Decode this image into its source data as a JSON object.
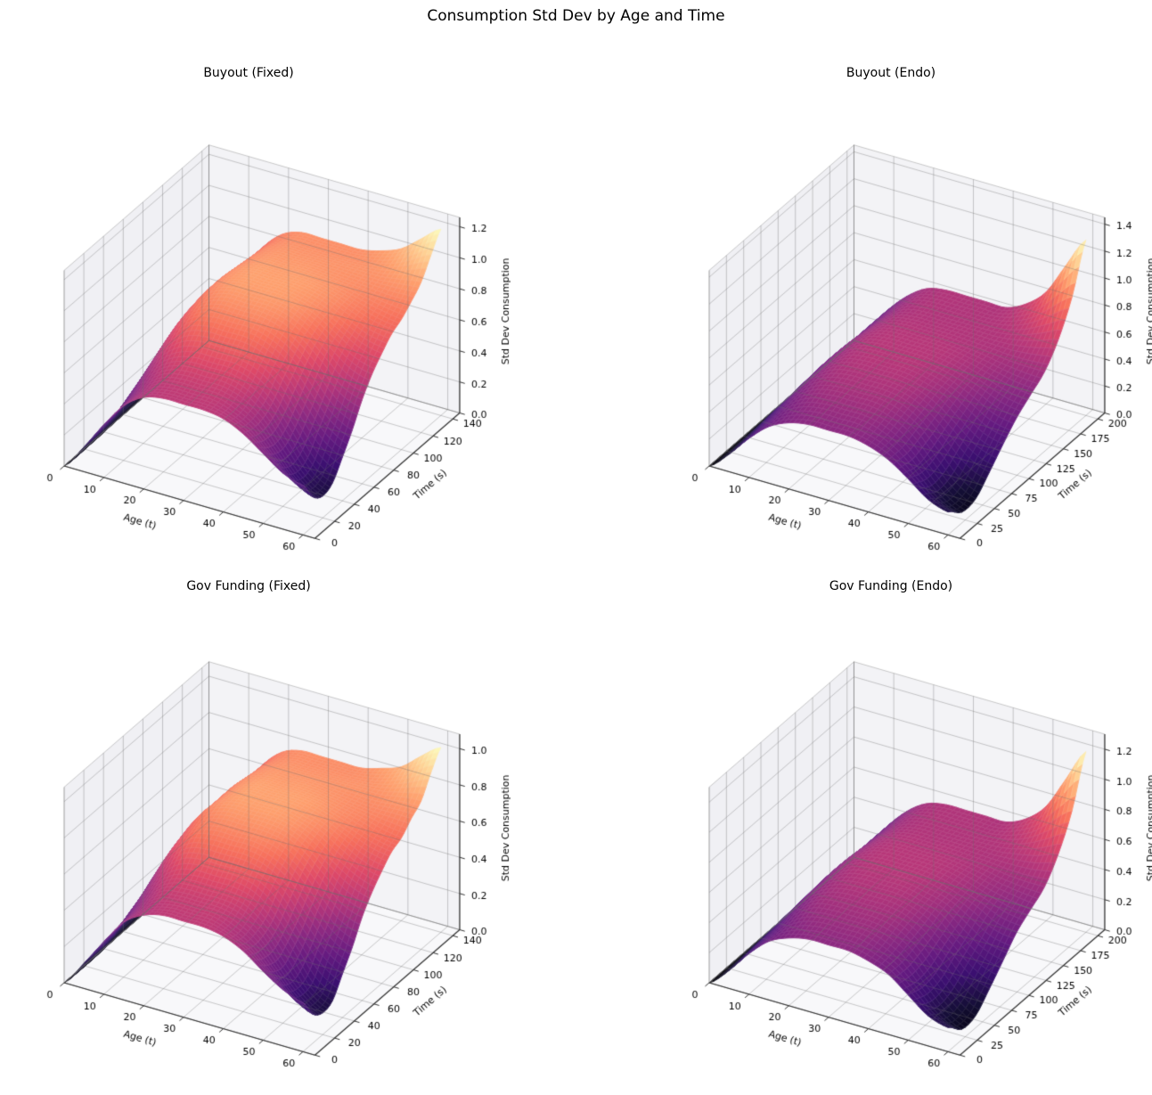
{
  "figure": {
    "suptitle": "Consumption Std Dev by Age and Time"
  },
  "colors": {
    "background": "#ffffff",
    "pane_wall": "#f0f0f4",
    "pane_wall2": "#f3f3f6",
    "pane_floor": "#f8f8fa",
    "grid_line": "rgba(110,110,110,0.45)",
    "axis_line": "#333333",
    "text": "#000000",
    "mesh_line": "rgba(255,255,255,0.25)",
    "colormap": "magma",
    "magma_stops": [
      [
        0,
        0,
        4
      ],
      [
        20,
        14,
        54
      ],
      [
        59,
        15,
        112
      ],
      [
        100,
        26,
        128
      ],
      [
        140,
        41,
        129
      ],
      [
        183,
        55,
        121
      ],
      [
        222,
        73,
        104
      ],
      [
        247,
        112,
        92
      ],
      [
        254,
        159,
        109
      ],
      [
        254,
        207,
        146
      ],
      [
        252,
        253,
        191
      ]
    ]
  },
  "chart_data": [
    {
      "type": "surface",
      "title": "Buyout (Fixed)",
      "xlabel": "Age (t)",
      "ylabel": "Time (s)",
      "zlabel": "Std Dev Consumption",
      "x_ticks": [
        0,
        10,
        20,
        30,
        40,
        50,
        60
      ],
      "y_ticks": [
        0,
        20,
        40,
        60,
        80,
        100,
        120,
        140
      ],
      "z_ticks": [
        0.0,
        0.2,
        0.4,
        0.6,
        0.8,
        1.0,
        1.2
      ],
      "xlim": [
        0,
        63
      ],
      "ylim": [
        0,
        147
      ],
      "zlim": [
        0,
        1.26
      ],
      "grid_on": true,
      "ages": [
        0,
        5,
        10,
        15,
        20,
        25,
        30,
        35,
        40,
        45,
        50,
        55,
        60
      ],
      "times": [
        0,
        10,
        20,
        30,
        40,
        50,
        60,
        70,
        80,
        90,
        100,
        110,
        120,
        130,
        140
      ],
      "z": [
        [
          0,
          0.16,
          0.34,
          0.5,
          0.59,
          0.62,
          0.62,
          0.62,
          0.6,
          0.54,
          0.45,
          0.36,
          0.32
        ],
        [
          0,
          0.16,
          0.35,
          0.5,
          0.6,
          0.63,
          0.63,
          0.63,
          0.59,
          0.52,
          0.39,
          0.26,
          0.19
        ],
        [
          0,
          0.17,
          0.36,
          0.53,
          0.63,
          0.66,
          0.66,
          0.66,
          0.62,
          0.53,
          0.37,
          0.22,
          0.14
        ],
        [
          0,
          0.18,
          0.4,
          0.58,
          0.68,
          0.72,
          0.72,
          0.72,
          0.68,
          0.58,
          0.42,
          0.25,
          0.17
        ],
        [
          0,
          0.2,
          0.44,
          0.64,
          0.76,
          0.8,
          0.8,
          0.8,
          0.76,
          0.67,
          0.51,
          0.36,
          0.28
        ],
        [
          0,
          0.22,
          0.48,
          0.7,
          0.83,
          0.87,
          0.87,
          0.87,
          0.83,
          0.75,
          0.61,
          0.47,
          0.4
        ],
        [
          0,
          0.23,
          0.51,
          0.74,
          0.87,
          0.92,
          0.92,
          0.92,
          0.89,
          0.82,
          0.71,
          0.59,
          0.54
        ],
        [
          0,
          0.24,
          0.52,
          0.76,
          0.9,
          0.95,
          0.95,
          0.95,
          0.93,
          0.87,
          0.78,
          0.69,
          0.65
        ],
        [
          0,
          0.24,
          0.53,
          0.77,
          0.91,
          0.96,
          0.96,
          0.96,
          0.94,
          0.9,
          0.83,
          0.76,
          0.73
        ],
        [
          0,
          0.24,
          0.53,
          0.77,
          0.91,
          0.96,
          0.96,
          0.96,
          0.95,
          0.92,
          0.87,
          0.82,
          0.8
        ],
        [
          0,
          0.24,
          0.52,
          0.76,
          0.9,
          0.95,
          0.95,
          0.95,
          0.94,
          0.92,
          0.89,
          0.86,
          0.84
        ],
        [
          0,
          0.24,
          0.52,
          0.75,
          0.89,
          0.94,
          0.94,
          0.94,
          0.93,
          0.92,
          0.91,
          0.9,
          0.9
        ],
        [
          0,
          0.23,
          0.51,
          0.74,
          0.88,
          0.93,
          0.93,
          0.93,
          0.93,
          0.93,
          0.93,
          0.95,
          0.97
        ],
        [
          0,
          0.23,
          0.51,
          0.74,
          0.87,
          0.92,
          0.92,
          0.92,
          0.92,
          0.93,
          0.96,
          1.02,
          1.09
        ],
        [
          0,
          0.23,
          0.51,
          0.74,
          0.87,
          0.92,
          0.92,
          0.92,
          0.92,
          0.95,
          1.0,
          1.1,
          1.2
        ]
      ]
    },
    {
      "type": "surface",
      "title": "Buyout (Endo)",
      "xlabel": "Age (t)",
      "ylabel": "Time (s)",
      "zlabel": "Std Dev Consumption",
      "x_ticks": [
        0,
        10,
        20,
        30,
        40,
        50,
        60
      ],
      "y_ticks": [
        0,
        25,
        50,
        75,
        100,
        125,
        150,
        175,
        200
      ],
      "z_ticks": [
        0.0,
        0.2,
        0.4,
        0.6,
        0.8,
        1.0,
        1.2,
        1.4
      ],
      "xlim": [
        0,
        63
      ],
      "ylim": [
        0,
        210
      ],
      "zlim": [
        0,
        1.45
      ],
      "grid_on": true,
      "ages": [
        0,
        5,
        10,
        15,
        20,
        25,
        30,
        35,
        40,
        45,
        50,
        55,
        60
      ],
      "times": [
        0,
        20,
        40,
        60,
        80,
        100,
        120,
        140,
        160,
        180,
        200
      ],
      "z": [
        [
          0,
          0.13,
          0.29,
          0.42,
          0.49,
          0.52,
          0.52,
          0.52,
          0.49,
          0.43,
          0.33,
          0.22,
          0.17
        ],
        [
          0,
          0.14,
          0.3,
          0.44,
          0.52,
          0.55,
          0.55,
          0.55,
          0.51,
          0.43,
          0.29,
          0.15,
          0.08
        ],
        [
          0,
          0.15,
          0.32,
          0.47,
          0.56,
          0.59,
          0.59,
          0.59,
          0.55,
          0.47,
          0.32,
          0.17,
          0.09
        ],
        [
          0,
          0.16,
          0.34,
          0.5,
          0.59,
          0.62,
          0.62,
          0.62,
          0.59,
          0.51,
          0.39,
          0.26,
          0.2
        ],
        [
          0,
          0.16,
          0.35,
          0.51,
          0.61,
          0.64,
          0.64,
          0.64,
          0.61,
          0.56,
          0.46,
          0.36,
          0.32
        ],
        [
          0,
          0.16,
          0.36,
          0.52,
          0.62,
          0.65,
          0.65,
          0.65,
          0.63,
          0.59,
          0.53,
          0.46,
          0.43
        ],
        [
          0,
          0.16,
          0.36,
          0.52,
          0.62,
          0.65,
          0.65,
          0.65,
          0.64,
          0.61,
          0.57,
          0.53,
          0.51
        ],
        [
          0,
          0.16,
          0.35,
          0.51,
          0.61,
          0.64,
          0.64,
          0.64,
          0.63,
          0.62,
          0.6,
          0.59,
          0.59
        ],
        [
          0,
          0.16,
          0.35,
          0.5,
          0.6,
          0.63,
          0.63,
          0.63,
          0.63,
          0.63,
          0.65,
          0.69,
          0.74
        ],
        [
          0,
          0.16,
          0.35,
          0.5,
          0.6,
          0.63,
          0.63,
          0.63,
          0.63,
          0.66,
          0.73,
          0.85,
          0.97
        ],
        [
          0,
          0.16,
          0.35,
          0.5,
          0.6,
          0.63,
          0.63,
          0.63,
          0.63,
          0.7,
          0.83,
          1.07,
          1.3
        ]
      ]
    },
    {
      "type": "surface",
      "title": "Gov Funding (Fixed)",
      "xlabel": "Age (t)",
      "ylabel": "Time (s)",
      "zlabel": "Std Dev Consumption",
      "x_ticks": [
        0,
        10,
        20,
        30,
        40,
        50,
        60
      ],
      "y_ticks": [
        0,
        20,
        40,
        60,
        80,
        100,
        120,
        140
      ],
      "z_ticks": [
        0.0,
        0.2,
        0.4,
        0.6,
        0.8,
        1.0
      ],
      "xlim": [
        0,
        63
      ],
      "ylim": [
        0,
        147
      ],
      "zlim": [
        0,
        1.08
      ],
      "grid_on": true,
      "ages": [
        0,
        5,
        10,
        15,
        20,
        25,
        30,
        35,
        40,
        45,
        50,
        55,
        60
      ],
      "times": [
        0,
        10,
        20,
        30,
        40,
        50,
        60,
        70,
        80,
        90,
        100,
        110,
        120,
        130,
        140
      ],
      "z": [
        [
          0,
          0.14,
          0.29,
          0.43,
          0.5,
          0.53,
          0.53,
          0.53,
          0.51,
          0.46,
          0.38,
          0.31,
          0.27
        ],
        [
          0,
          0.14,
          0.3,
          0.43,
          0.51,
          0.54,
          0.54,
          0.54,
          0.5,
          0.44,
          0.33,
          0.22,
          0.16
        ],
        [
          0,
          0.14,
          0.31,
          0.45,
          0.54,
          0.56,
          0.56,
          0.56,
          0.53,
          0.45,
          0.31,
          0.19,
          0.12
        ],
        [
          0,
          0.15,
          0.34,
          0.49,
          0.58,
          0.61,
          0.61,
          0.61,
          0.58,
          0.49,
          0.36,
          0.21,
          0.14
        ],
        [
          0,
          0.17,
          0.37,
          0.54,
          0.65,
          0.68,
          0.68,
          0.68,
          0.65,
          0.57,
          0.43,
          0.31,
          0.24
        ],
        [
          0,
          0.19,
          0.41,
          0.6,
          0.71,
          0.74,
          0.74,
          0.74,
          0.71,
          0.64,
          0.52,
          0.4,
          0.34
        ],
        [
          0,
          0.2,
          0.43,
          0.63,
          0.74,
          0.78,
          0.78,
          0.78,
          0.76,
          0.7,
          0.6,
          0.5,
          0.46
        ],
        [
          0,
          0.2,
          0.44,
          0.65,
          0.77,
          0.81,
          0.81,
          0.81,
          0.79,
          0.74,
          0.66,
          0.59,
          0.55
        ],
        [
          0,
          0.2,
          0.45,
          0.65,
          0.77,
          0.82,
          0.82,
          0.82,
          0.8,
          0.77,
          0.71,
          0.65,
          0.62
        ],
        [
          0,
          0.2,
          0.45,
          0.65,
          0.77,
          0.82,
          0.82,
          0.82,
          0.81,
          0.78,
          0.74,
          0.7,
          0.68
        ],
        [
          0,
          0.2,
          0.44,
          0.65,
          0.77,
          0.81,
          0.81,
          0.81,
          0.8,
          0.78,
          0.76,
          0.73,
          0.71
        ],
        [
          0,
          0.2,
          0.44,
          0.64,
          0.76,
          0.8,
          0.8,
          0.8,
          0.79,
          0.78,
          0.77,
          0.77,
          0.77
        ],
        [
          0,
          0.2,
          0.43,
          0.63,
          0.75,
          0.79,
          0.79,
          0.79,
          0.79,
          0.79,
          0.79,
          0.81,
          0.82
        ],
        [
          0,
          0.2,
          0.43,
          0.63,
          0.74,
          0.78,
          0.78,
          0.78,
          0.78,
          0.79,
          0.82,
          0.87,
          0.93
        ],
        [
          0,
          0.2,
          0.43,
          0.63,
          0.74,
          0.78,
          0.78,
          0.78,
          0.78,
          0.81,
          0.85,
          0.94,
          1.02
        ]
      ]
    },
    {
      "type": "surface",
      "title": "Gov Funding (Endo)",
      "xlabel": "Age (t)",
      "ylabel": "Time (s)",
      "zlabel": "Std Dev Consumption",
      "x_ticks": [
        0,
        10,
        20,
        30,
        40,
        50,
        60
      ],
      "y_ticks": [
        0,
        25,
        50,
        75,
        100,
        125,
        150,
        175,
        200
      ],
      "z_ticks": [
        0.0,
        0.2,
        0.4,
        0.6,
        0.8,
        1.0,
        1.2
      ],
      "xlim": [
        0,
        63
      ],
      "ylim": [
        0,
        210
      ],
      "zlim": [
        0,
        1.3
      ],
      "grid_on": true,
      "ages": [
        0,
        5,
        10,
        15,
        20,
        25,
        30,
        35,
        40,
        45,
        50,
        55,
        60
      ],
      "times": [
        0,
        20,
        40,
        60,
        80,
        100,
        120,
        140,
        160,
        180,
        200
      ],
      "z": [
        [
          0,
          0.12,
          0.27,
          0.39,
          0.45,
          0.48,
          0.48,
          0.48,
          0.45,
          0.4,
          0.3,
          0.2,
          0.16
        ],
        [
          0,
          0.13,
          0.28,
          0.4,
          0.48,
          0.51,
          0.51,
          0.51,
          0.47,
          0.4,
          0.27,
          0.14,
          0.07
        ],
        [
          0,
          0.14,
          0.29,
          0.43,
          0.52,
          0.54,
          0.54,
          0.54,
          0.51,
          0.43,
          0.29,
          0.16,
          0.08
        ],
        [
          0,
          0.15,
          0.31,
          0.46,
          0.54,
          0.57,
          0.57,
          0.57,
          0.54,
          0.47,
          0.36,
          0.24,
          0.18
        ],
        [
          0,
          0.15,
          0.32,
          0.47,
          0.56,
          0.59,
          0.59,
          0.59,
          0.56,
          0.52,
          0.42,
          0.33,
          0.29
        ],
        [
          0,
          0.15,
          0.33,
          0.48,
          0.57,
          0.6,
          0.6,
          0.6,
          0.58,
          0.54,
          0.49,
          0.42,
          0.4
        ],
        [
          0,
          0.15,
          0.33,
          0.48,
          0.57,
          0.6,
          0.6,
          0.6,
          0.59,
          0.56,
          0.52,
          0.49,
          0.47
        ],
        [
          0,
          0.15,
          0.32,
          0.47,
          0.56,
          0.59,
          0.59,
          0.59,
          0.58,
          0.57,
          0.55,
          0.54,
          0.54
        ],
        [
          0,
          0.15,
          0.32,
          0.46,
          0.55,
          0.58,
          0.58,
          0.58,
          0.58,
          0.58,
          0.6,
          0.63,
          0.68
        ],
        [
          0,
          0.15,
          0.32,
          0.46,
          0.55,
          0.58,
          0.58,
          0.58,
          0.58,
          0.61,
          0.67,
          0.78,
          0.89
        ],
        [
          0,
          0.15,
          0.32,
          0.46,
          0.55,
          0.58,
          0.58,
          0.58,
          0.58,
          0.64,
          0.76,
          0.98,
          1.2
        ]
      ]
    }
  ]
}
